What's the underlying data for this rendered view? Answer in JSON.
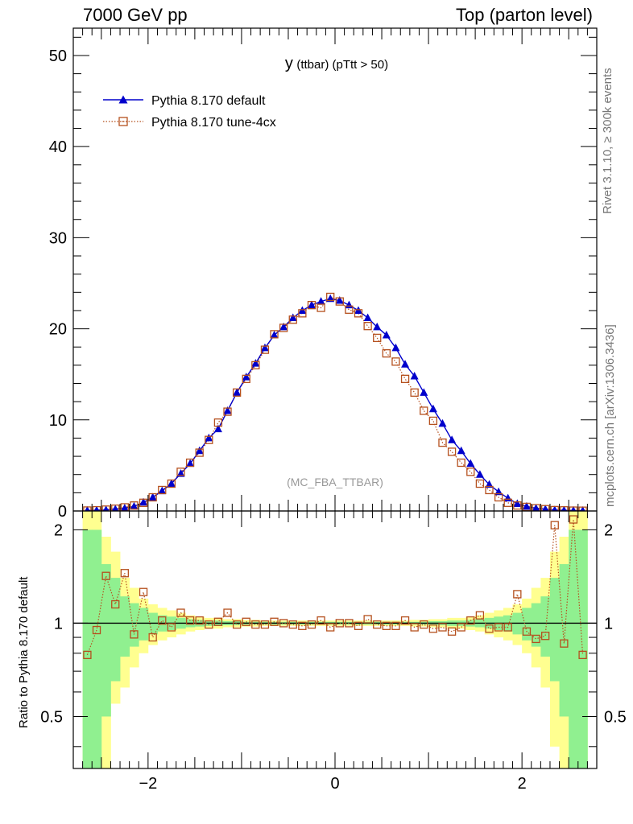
{
  "header": {
    "left": "7000 GeV pp",
    "right": "Top (parton level)"
  },
  "side_labels": {
    "rivet": "Rivet 3.1.10, ≥ 300k events",
    "mcplots": "mcplots.cern.ch [arXiv:1306.3436]"
  },
  "watermark": "(MC_FBA_TTBAR)",
  "ratio_ylabel": "Ratio to Pythia 8.170 default",
  "colors": {
    "default": "#0000cc",
    "tune": "#b5501e",
    "band_inner": "#90f090",
    "band_outer": "#ffff90"
  },
  "chart_data": [
    {
      "type": "line",
      "title_main": "y",
      "title_rest": "(ttbar) (pTtt > 50)",
      "xlim": [
        -2.8,
        2.8
      ],
      "ylim": [
        0,
        53
      ],
      "y_ticks": [
        0,
        10,
        20,
        30,
        40,
        50
      ],
      "x": [
        -2.65,
        -2.55,
        -2.45,
        -2.35,
        -2.25,
        -2.15,
        -2.05,
        -1.95,
        -1.85,
        -1.75,
        -1.65,
        -1.55,
        -1.45,
        -1.35,
        -1.25,
        -1.15,
        -1.05,
        -0.95,
        -0.85,
        -0.75,
        -0.65,
        -0.55,
        -0.45,
        -0.35,
        -0.25,
        -0.15,
        -0.05,
        0.05,
        0.15,
        0.25,
        0.35,
        0.45,
        0.55,
        0.65,
        0.75,
        0.85,
        0.95,
        1.05,
        1.15,
        1.25,
        1.35,
        1.45,
        1.55,
        1.65,
        1.75,
        1.85,
        1.95,
        2.05,
        2.15,
        2.25,
        2.35,
        2.45,
        2.55,
        2.65
      ],
      "series": [
        {
          "name": "Pythia 8.170 default",
          "marker": "filled-triangle",
          "values": [
            0.05,
            0.08,
            0.12,
            0.2,
            0.3,
            0.5,
            0.95,
            1.5,
            2.2,
            3.0,
            4.1,
            5.2,
            6.6,
            8.0,
            9.0,
            11.0,
            13.0,
            14.7,
            16.2,
            17.9,
            19.3,
            20.2,
            21.2,
            22.0,
            22.6,
            23.0,
            23.3,
            23.1,
            22.6,
            22.0,
            21.2,
            20.2,
            19.3,
            17.9,
            16.1,
            14.8,
            13.0,
            11.2,
            9.6,
            7.8,
            6.6,
            5.2,
            4.0,
            2.9,
            2.1,
            1.4,
            0.8,
            0.5,
            0.3,
            0.2,
            0.1,
            0.08,
            0.05,
            0.04
          ]
        },
        {
          "name": "Pythia 8.170 tune-4cx",
          "marker": "open-square",
          "values": [
            0.05,
            0.08,
            0.15,
            0.25,
            0.4,
            0.6,
            0.9,
            1.5,
            2.3,
            3.0,
            4.3,
            5.3,
            6.4,
            7.8,
            9.7,
            10.9,
            13.0,
            14.5,
            16.0,
            17.7,
            19.4,
            20.1,
            21.0,
            21.7,
            22.6,
            22.3,
            23.5,
            23.0,
            22.1,
            21.7,
            20.3,
            19.0,
            17.3,
            16.4,
            14.5,
            13.0,
            11.0,
            9.9,
            7.5,
            6.5,
            5.3,
            4.3,
            3.0,
            2.3,
            1.5,
            0.9,
            0.6,
            0.45,
            0.3,
            0.2,
            0.1,
            0.07,
            0.04,
            0.03
          ]
        }
      ]
    },
    {
      "type": "line",
      "ylabel": "Ratio to Pythia 8.170 default",
      "xlim": [
        -2.8,
        2.8
      ],
      "ylim": [
        0.34,
        2.3
      ],
      "x_ticks": [
        -2,
        0,
        2
      ],
      "y_ticks": [
        0.5,
        1,
        2
      ],
      "reference": 1,
      "x": [
        -2.65,
        -2.55,
        -2.45,
        -2.35,
        -2.25,
        -2.15,
        -2.05,
        -1.95,
        -1.85,
        -1.75,
        -1.65,
        -1.55,
        -1.45,
        -1.35,
        -1.25,
        -1.15,
        -1.05,
        -0.95,
        -0.85,
        -0.75,
        -0.65,
        -0.55,
        -0.45,
        -0.35,
        -0.25,
        -0.15,
        -0.05,
        0.05,
        0.15,
        0.25,
        0.35,
        0.45,
        0.55,
        0.65,
        0.75,
        0.85,
        0.95,
        1.05,
        1.15,
        1.25,
        1.35,
        1.45,
        1.55,
        1.65,
        1.75,
        1.85,
        1.95,
        2.05,
        2.15,
        2.25,
        2.35,
        2.45,
        2.55,
        2.65
      ],
      "band_inner": [
        [
          0.3,
          2.0
        ],
        [
          0.3,
          2.0
        ],
        [
          0.5,
          1.55
        ],
        [
          0.65,
          1.4
        ],
        [
          0.78,
          1.22
        ],
        [
          0.84,
          1.16
        ],
        [
          0.88,
          1.12
        ],
        [
          0.92,
          1.08
        ],
        [
          0.94,
          1.06
        ],
        [
          0.95,
          1.05
        ],
        [
          0.96,
          1.04
        ],
        [
          0.97,
          1.03
        ],
        [
          0.975,
          1.025
        ],
        [
          0.98,
          1.02
        ],
        [
          0.98,
          1.02
        ],
        [
          0.985,
          1.015
        ],
        [
          0.985,
          1.015
        ],
        [
          0.99,
          1.01
        ],
        [
          0.99,
          1.01
        ],
        [
          0.99,
          1.01
        ],
        [
          0.99,
          1.01
        ],
        [
          0.99,
          1.01
        ],
        [
          0.99,
          1.01
        ],
        [
          0.99,
          1.01
        ],
        [
          0.99,
          1.01
        ],
        [
          0.99,
          1.01
        ],
        [
          0.99,
          1.01
        ],
        [
          0.99,
          1.01
        ],
        [
          0.99,
          1.01
        ],
        [
          0.99,
          1.01
        ],
        [
          0.99,
          1.01
        ],
        [
          0.99,
          1.01
        ],
        [
          0.99,
          1.01
        ],
        [
          0.99,
          1.01
        ],
        [
          0.99,
          1.01
        ],
        [
          0.99,
          1.01
        ],
        [
          0.99,
          1.01
        ],
        [
          0.985,
          1.015
        ],
        [
          0.985,
          1.015
        ],
        [
          0.98,
          1.02
        ],
        [
          0.98,
          1.02
        ],
        [
          0.975,
          1.025
        ],
        [
          0.97,
          1.03
        ],
        [
          0.96,
          1.04
        ],
        [
          0.95,
          1.05
        ],
        [
          0.94,
          1.06
        ],
        [
          0.92,
          1.08
        ],
        [
          0.88,
          1.12
        ],
        [
          0.84,
          1.16
        ],
        [
          0.78,
          1.22
        ],
        [
          0.65,
          1.4
        ],
        [
          0.5,
          1.55
        ],
        [
          0.3,
          2.0
        ],
        [
          0.3,
          2.0
        ]
      ],
      "band_outer": [
        [
          0.3,
          2.3
        ],
        [
          0.3,
          2.3
        ],
        [
          0.3,
          1.9
        ],
        [
          0.55,
          1.7
        ],
        [
          0.62,
          1.4
        ],
        [
          0.72,
          1.3
        ],
        [
          0.8,
          1.2
        ],
        [
          0.85,
          1.15
        ],
        [
          0.88,
          1.12
        ],
        [
          0.9,
          1.1
        ],
        [
          0.92,
          1.08
        ],
        [
          0.94,
          1.06
        ],
        [
          0.95,
          1.05
        ],
        [
          0.96,
          1.04
        ],
        [
          0.96,
          1.04
        ],
        [
          0.97,
          1.03
        ],
        [
          0.97,
          1.03
        ],
        [
          0.975,
          1.025
        ],
        [
          0.975,
          1.025
        ],
        [
          0.98,
          1.02
        ],
        [
          0.98,
          1.02
        ],
        [
          0.98,
          1.02
        ],
        [
          0.98,
          1.02
        ],
        [
          0.98,
          1.02
        ],
        [
          0.98,
          1.02
        ],
        [
          0.98,
          1.02
        ],
        [
          0.98,
          1.02
        ],
        [
          0.98,
          1.02
        ],
        [
          0.98,
          1.02
        ],
        [
          0.98,
          1.02
        ],
        [
          0.98,
          1.02
        ],
        [
          0.98,
          1.02
        ],
        [
          0.98,
          1.02
        ],
        [
          0.98,
          1.02
        ],
        [
          0.98,
          1.02
        ],
        [
          0.975,
          1.025
        ],
        [
          0.975,
          1.025
        ],
        [
          0.97,
          1.03
        ],
        [
          0.97,
          1.03
        ],
        [
          0.96,
          1.04
        ],
        [
          0.96,
          1.04
        ],
        [
          0.95,
          1.05
        ],
        [
          0.94,
          1.06
        ],
        [
          0.92,
          1.08
        ],
        [
          0.9,
          1.1
        ],
        [
          0.88,
          1.12
        ],
        [
          0.85,
          1.15
        ],
        [
          0.8,
          1.2
        ],
        [
          0.72,
          1.3
        ],
        [
          0.62,
          1.4
        ],
        [
          0.4,
          1.7
        ],
        [
          0.3,
          1.9
        ],
        [
          0.3,
          2.3
        ],
        [
          0.3,
          2.3
        ]
      ],
      "series": [
        {
          "name": "Pythia 8.170 tune-4cx",
          "values": [
            0.79,
            0.95,
            1.42,
            1.15,
            1.45,
            0.92,
            1.26,
            0.9,
            1.02,
            0.97,
            1.08,
            1.02,
            1.02,
            0.99,
            1.01,
            1.08,
            0.99,
            1.01,
            0.99,
            0.99,
            1.01,
            1.0,
            0.99,
            0.98,
            0.99,
            1.02,
            0.97,
            1.0,
            1.0,
            0.98,
            1.03,
            0.99,
            0.98,
            0.98,
            1.02,
            0.97,
            0.99,
            0.96,
            0.97,
            0.94,
            0.97,
            1.02,
            1.06,
            0.96,
            0.97,
            0.97,
            1.24,
            0.94,
            0.89,
            0.91,
            2.07,
            0.86,
            2.16,
            0.79
          ]
        }
      ]
    }
  ]
}
